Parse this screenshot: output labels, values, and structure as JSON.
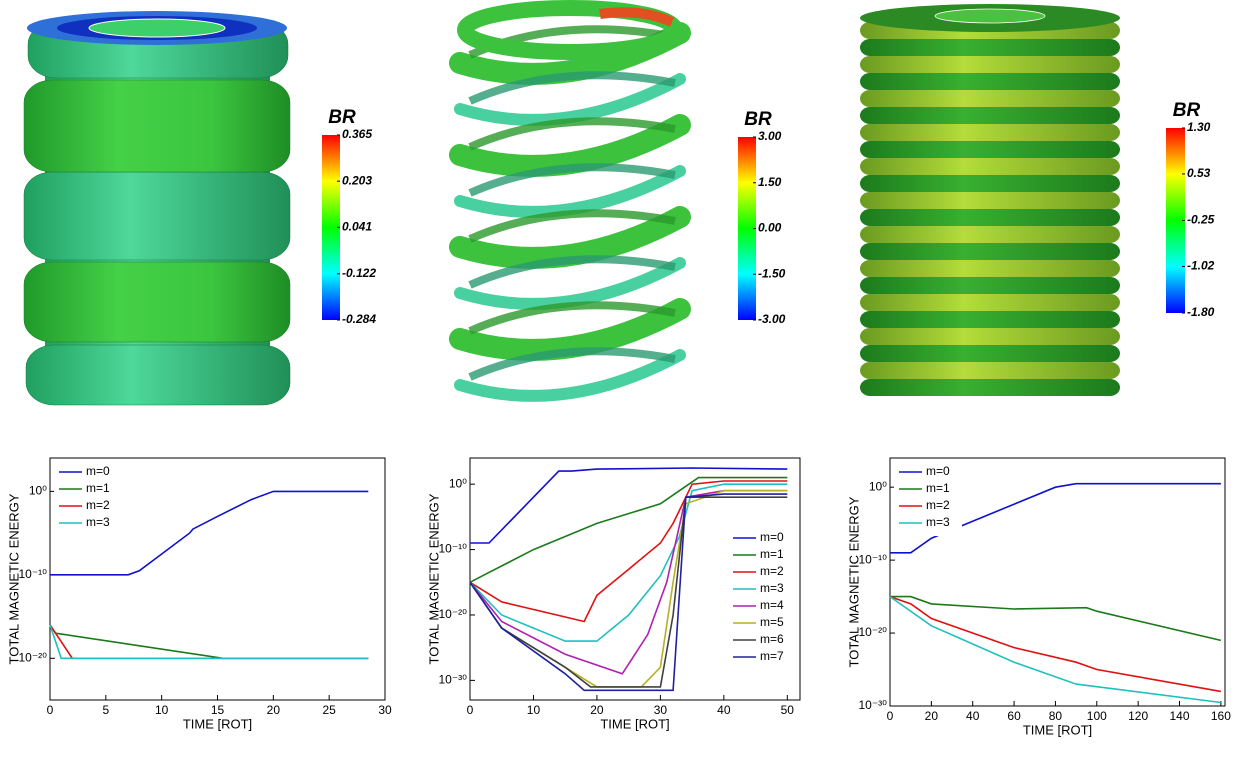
{
  "chart_data": [
    {
      "type": "colorbar",
      "title": "BR",
      "colors": [
        "#ff0000",
        "#ffff00",
        "#00ff00",
        "#00ffff",
        "#0000ff"
      ],
      "ylim": [
        -0.284,
        0.365
      ],
      "yticks": [
        0.365,
        0.203,
        0.041,
        -0.122,
        -0.284
      ]
    },
    {
      "type": "colorbar",
      "title": "BR",
      "colors": [
        "#ff0000",
        "#ffff00",
        "#00ff00",
        "#00ffff",
        "#0000ff"
      ],
      "ylim": [
        -3,
        3
      ],
      "yticks": [
        {
          "value": 3,
          "label": "3.00"
        },
        {
          "value": 1.5,
          "label": "1.50"
        },
        {
          "value": 0,
          "label": "0.00"
        },
        {
          "value": -1.5,
          "label": "-1.50"
        },
        {
          "value": -3,
          "label": "-3.00"
        }
      ]
    },
    {
      "type": "colorbar",
      "title": "BR",
      "colors": [
        "#ff0000",
        "#ffff00",
        "#00ff00",
        "#00ffff",
        "#0000ff"
      ],
      "ylim": [
        -1.8,
        1.3
      ],
      "yticks": [
        {
          "value": 1.3,
          "label": "1.30"
        },
        0.53,
        -0.25,
        -1.02,
        {
          "value": -1.8,
          "label": "-1.80"
        }
      ]
    },
    {
      "type": "line",
      "xlabel": "TIME [ROT]",
      "ylabel": "TOTAL MAGNETIC ENERGY",
      "log": true,
      "legend": "upper left",
      "xlim": [
        0,
        30
      ],
      "xticks": [
        0,
        5,
        10,
        15,
        20,
        25,
        30
      ],
      "ylim": [
        1e-25,
        10000.0
      ],
      "yticks": [
        {
          "value": 1,
          "label": "10⁰"
        },
        {
          "value": 1e-10,
          "label": "10⁻¹⁰"
        },
        {
          "value": 1e-20,
          "label": "10⁻²⁰"
        }
      ],
      "series": [
        {
          "name": "m=0",
          "color": "#1010d0",
          "x": [
            0,
            7,
            8,
            12.5,
            12.8,
            15,
            18,
            20,
            28.5
          ],
          "values": [
            1e-10,
            1e-10,
            3e-10,
            1e-05,
            3e-05,
            0.001,
            0.1,
            1,
            1
          ]
        },
        {
          "name": "m=1",
          "color": "#1a7a1a",
          "x": [
            0,
            0.5,
            15.5,
            28.5
          ],
          "values": [
            1e-16,
            1e-17,
            1e-20,
            1e-20
          ]
        },
        {
          "name": "m=2",
          "color": "#e01010",
          "x": [
            0,
            2,
            28.5
          ],
          "values": [
            1e-16,
            1e-20,
            1e-20
          ]
        },
        {
          "name": "m=3",
          "color": "#20c0c0",
          "x": [
            0,
            1,
            28.5
          ],
          "values": [
            1e-16,
            1e-20,
            1e-20
          ]
        }
      ]
    },
    {
      "type": "line",
      "xlabel": "TIME [ROT]",
      "ylabel": "TOTAL MAGNETIC ENERGY",
      "log": true,
      "legend": "center right",
      "xlim": [
        0,
        52
      ],
      "xticks": [
        0,
        10,
        20,
        30,
        40,
        50
      ],
      "ylim": [
        1e-33,
        10000.0
      ],
      "yticks": [
        {
          "value": 1,
          "label": "10⁰"
        },
        {
          "value": 1e-10,
          "label": "10⁻¹⁰"
        },
        {
          "value": 1e-20,
          "label": "10⁻²⁰"
        },
        {
          "value": 1e-30,
          "label": "10⁻³⁰"
        }
      ],
      "series": [
        {
          "name": "m=0",
          "color": "#1010d0",
          "x": [
            0,
            3,
            14,
            16,
            20,
            35,
            50
          ],
          "values": [
            1e-09,
            1e-09,
            100,
            100,
            200,
            300,
            200
          ]
        },
        {
          "name": "m=1",
          "color": "#1a7a1a",
          "x": [
            0,
            2,
            10,
            15,
            20,
            30,
            33,
            36,
            40,
            50
          ],
          "values": [
            1e-15,
            1e-14,
            1e-10,
            1e-08,
            1e-06,
            0.001,
            0.1,
            10,
            10,
            10
          ]
        },
        {
          "name": "m=2",
          "color": "#e01010",
          "x": [
            0,
            5,
            18,
            20,
            25,
            30,
            32,
            35,
            40,
            50
          ],
          "values": [
            1e-15,
            1e-18,
            1e-21,
            1e-17,
            1e-13,
            1e-09,
            1e-06,
            1,
            3,
            3
          ]
        },
        {
          "name": "m=3",
          "color": "#20c0c0",
          "x": [
            0,
            5,
            15,
            20,
            25,
            30,
            33,
            35,
            40,
            50
          ],
          "values": [
            1e-15,
            1e-20,
            1e-24,
            1e-24,
            1e-20,
            1e-14,
            1e-08,
            0.1,
            1,
            1
          ]
        },
        {
          "name": "m=4",
          "color": "#b020b0",
          "x": [
            0,
            5,
            15,
            24,
            28,
            31,
            34,
            40,
            50
          ],
          "values": [
            1e-15,
            1e-21,
            1e-26,
            1e-29,
            1e-23,
            1e-15,
            0.01,
            0.1,
            0.1
          ]
        },
        {
          "name": "m=5",
          "color": "#b8b020",
          "x": [
            0,
            5,
            15,
            20,
            27,
            30,
            32,
            34,
            40,
            50
          ],
          "values": [
            1e-15,
            1e-22,
            1e-28,
            1e-31,
            1e-31,
            1e-28,
            1e-15,
            0.001,
            0.1,
            0.1
          ]
        },
        {
          "name": "m=6",
          "color": "#404040",
          "x": [
            0,
            5,
            15,
            19,
            30,
            32,
            34,
            40,
            50
          ],
          "values": [
            1e-15,
            1e-22,
            1e-28,
            1e-31,
            1e-31,
            1e-20,
            0.01,
            0.01,
            0.01
          ]
        },
        {
          "name": "m=7",
          "color": "#2020a0",
          "x": [
            0,
            5,
            15,
            18,
            32,
            34,
            40,
            50
          ],
          "values": [
            1e-15,
            1e-22,
            1e-29,
            3e-32,
            3e-32,
            0.01,
            0.03,
            0.03
          ]
        }
      ]
    },
    {
      "type": "line",
      "xlabel": "TIME [ROT]",
      "ylabel": "TOTAL MAGNETIC ENERGY",
      "log": true,
      "legend": "upper left",
      "xlim": [
        0,
        162
      ],
      "xticks": [
        0,
        20,
        40,
        60,
        80,
        100,
        120,
        140,
        160
      ],
      "ylim": [
        1e-30,
        10000.0
      ],
      "yticks": [
        {
          "value": 1,
          "label": "10⁰"
        },
        {
          "value": 1e-10,
          "label": "10⁻¹⁰"
        },
        {
          "value": 1e-20,
          "label": "10⁻²⁰"
        },
        {
          "value": 1e-30,
          "label": "10⁻³⁰"
        }
      ],
      "series": [
        {
          "name": "m=0",
          "color": "#1010d0",
          "x": [
            0,
            10,
            20,
            80,
            90,
            160
          ],
          "values": [
            1e-09,
            1e-09,
            1e-07,
            1,
            3,
            3
          ]
        },
        {
          "name": "m=1",
          "color": "#1a7a1a",
          "x": [
            0,
            10,
            20,
            60,
            95,
            100,
            160
          ],
          "values": [
            1e-15,
            1e-15,
            1e-16,
            2e-17,
            3e-17,
            1e-17,
            1e-21
          ]
        },
        {
          "name": "m=2",
          "color": "#e01010",
          "x": [
            0,
            10,
            20,
            60,
            90,
            100,
            160
          ],
          "values": [
            1e-15,
            1e-16,
            1e-18,
            1e-22,
            1e-24,
            1e-25,
            1e-28
          ]
        },
        {
          "name": "m=3",
          "color": "#20c0c0",
          "x": [
            0,
            20,
            60,
            90,
            160
          ],
          "values": [
            1e-15,
            1e-19,
            1e-24,
            1e-27,
            3e-30
          ]
        }
      ]
    }
  ]
}
